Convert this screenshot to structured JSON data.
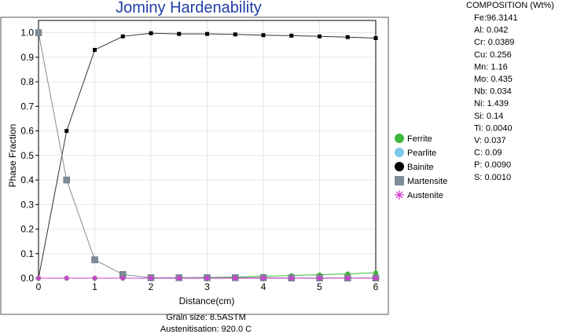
{
  "chart_data": {
    "type": "line",
    "title": "Jominy Hardenability",
    "xlabel": "Distance(cm)",
    "ylabel": "Phase Fraction",
    "xlim": [
      0,
      6
    ],
    "ylim": [
      0,
      1.05
    ],
    "x_ticks": [
      "0",
      "1",
      "2",
      "3",
      "4",
      "5",
      "6"
    ],
    "y_ticks": [
      "0.0",
      "0.1",
      "0.2",
      "0.3",
      "0.4",
      "0.5",
      "0.6",
      "0.7",
      "0.8",
      "0.9",
      "1.0"
    ],
    "x_tick_values": [
      0,
      1,
      2,
      3,
      4,
      5,
      6
    ],
    "y_tick_values": [
      0,
      0.1,
      0.2,
      0.3,
      0.4,
      0.5,
      0.6,
      0.7,
      0.8,
      0.9,
      1.0
    ],
    "x": [
      0,
      0.5,
      1,
      1.5,
      2,
      2.5,
      3,
      3.5,
      4,
      4.5,
      5,
      5.5,
      6
    ],
    "series": [
      {
        "name": "Ferrite",
        "color": "#3cb83c",
        "marker": "circle",
        "line_color": "#3cb83c",
        "values": [
          0,
          0,
          0,
          0,
          0,
          0.002,
          0.003,
          0.005,
          0.008,
          0.011,
          0.014,
          0.018,
          0.022
        ]
      },
      {
        "name": "Pearlite",
        "color": "#7cc8e8",
        "marker": "circle",
        "line_color": "#7cc8e8",
        "values": [
          0,
          0,
          0,
          0,
          0,
          0,
          0,
          0,
          0,
          0,
          0,
          0,
          0
        ]
      },
      {
        "name": "Bainite",
        "color": "#000000",
        "marker": "square-small",
        "line_color": "#333333",
        "values": [
          0,
          0.6,
          0.93,
          0.985,
          0.998,
          0.995,
          0.995,
          0.993,
          0.99,
          0.988,
          0.985,
          0.982,
          0.978
        ]
      },
      {
        "name": "Martensite",
        "color": "#7f8c99",
        "marker": "square",
        "line_color": "#7f8c99",
        "values": [
          1.0,
          0.4,
          0.075,
          0.015,
          0.002,
          0.002,
          0.002,
          0.002,
          0.002,
          0.001,
          0.001,
          0.001,
          0.001
        ]
      },
      {
        "name": "Austenite",
        "color": "#d23cd2",
        "marker": "star",
        "line_color": "#d23cd2",
        "values": [
          0,
          0,
          0,
          0,
          0,
          0,
          0,
          0,
          0,
          0,
          0,
          0,
          0
        ]
      }
    ],
    "legend_position": "right"
  },
  "footer": {
    "grain_size": "Grain size: 8.5ASTM",
    "austenitisation": "Austenitisation: 920.0 C"
  },
  "composition": {
    "heading": "COMPOSITION (Wt%)",
    "items": [
      "Fe:96.3141",
      "Al: 0.042",
      "Cr: 0.0389",
      "Cu: 0.256",
      "Mn: 1.16",
      "Mo: 0.435",
      "Nb: 0.034",
      "Ni: 1.439",
      "Si: 0.14",
      "Ti: 0.0040",
      "V: 0.037",
      "C: 0.09",
      "P: 0.0090",
      "S: 0.0010"
    ]
  }
}
